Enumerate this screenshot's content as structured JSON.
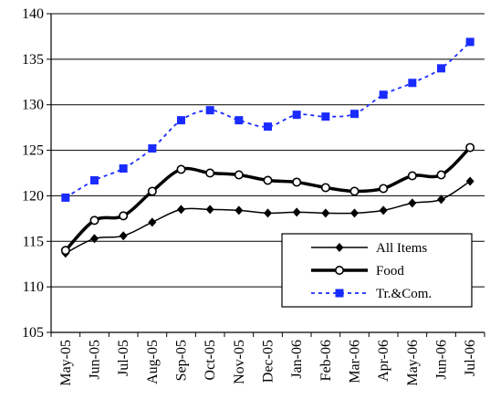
{
  "chart_data": {
    "type": "line",
    "title": "",
    "xlabel": "",
    "ylabel": "",
    "ylim": [
      105,
      140
    ],
    "yticks": [
      105,
      110,
      115,
      120,
      125,
      130,
      135,
      140
    ],
    "ytick_labels": [
      "105",
      "110",
      "115",
      "120",
      "125",
      "130",
      "135",
      "140"
    ],
    "grid": "horizontal",
    "legend_position": "bottom-right",
    "categories": [
      "May-05",
      "Jun-05",
      "Jul-05",
      "Aug-05",
      "Sep-05",
      "Oct-05",
      "Nov-05",
      "Dec-05",
      "Jan-06",
      "Feb-06",
      "Mar-06",
      "Apr-06",
      "May-06",
      "Jun-06",
      "Jul-06"
    ],
    "series": [
      {
        "name": "All Items",
        "values": [
          113.7,
          115.3,
          115.6,
          117.1,
          118.5,
          118.5,
          118.4,
          118.1,
          118.2,
          118.1,
          118.1,
          118.4,
          119.2,
          119.6,
          121.6
        ],
        "color": "#000000",
        "line_style": "solid-thin",
        "marker": "diamond"
      },
      {
        "name": "Food",
        "values": [
          114.0,
          117.3,
          117.8,
          120.5,
          122.9,
          122.5,
          122.3,
          121.7,
          121.5,
          120.9,
          120.5,
          120.8,
          122.2,
          122.3,
          125.3
        ],
        "color": "#000000",
        "line_style": "solid-thick",
        "marker": "open-circle"
      },
      {
        "name": "Tr.&Com.",
        "values": [
          119.8,
          121.7,
          123.0,
          125.2,
          128.3,
          129.4,
          128.3,
          127.6,
          128.9,
          128.7,
          129.0,
          131.1,
          132.4,
          134.0,
          136.9
        ],
        "color": "#1a2bff",
        "line_style": "dashed",
        "marker": "square"
      }
    ]
  }
}
